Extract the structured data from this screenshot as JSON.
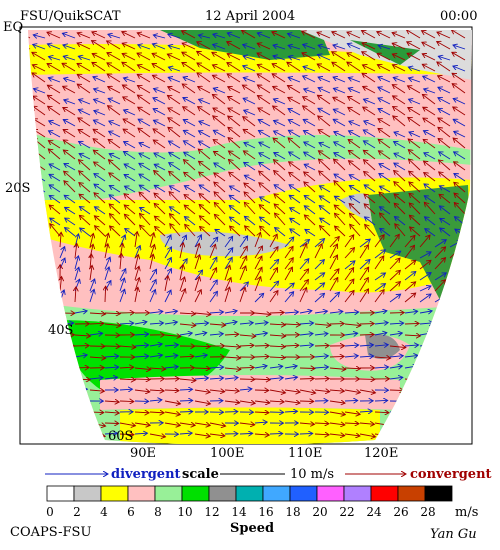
{
  "header": {
    "left": "FSU/QuikSCAT",
    "center": "12 April 2004",
    "right": "00:00"
  },
  "map": {
    "lat_labels": [
      "EQ",
      "20S",
      "40S",
      "60S"
    ],
    "lon_labels": [
      "90E",
      "100E",
      "110E",
      "120E"
    ]
  },
  "legend": {
    "divergent": "divergent",
    "scale": "scale",
    "scale_value": "10 m/s",
    "convergent": "convergent"
  },
  "colorbar": {
    "ticks": [
      0,
      2,
      4,
      6,
      8,
      10,
      12,
      14,
      16,
      18,
      20,
      22,
      24,
      26,
      28
    ],
    "unit": "m/s",
    "title": "Speed",
    "colors": [
      "#ffffff",
      "#c8c8c8",
      "#ffff00",
      "#ffc0c0",
      "#98f098",
      "#00e000",
      "#909090",
      "#00b0b0",
      "#40a8ff",
      "#2060ff",
      "#ff60ff",
      "#b080ff",
      "#ff0000",
      "#c84000",
      "#000000"
    ]
  },
  "footer": {
    "left": "COAPS-FSU",
    "right": "Yan Gu"
  }
}
